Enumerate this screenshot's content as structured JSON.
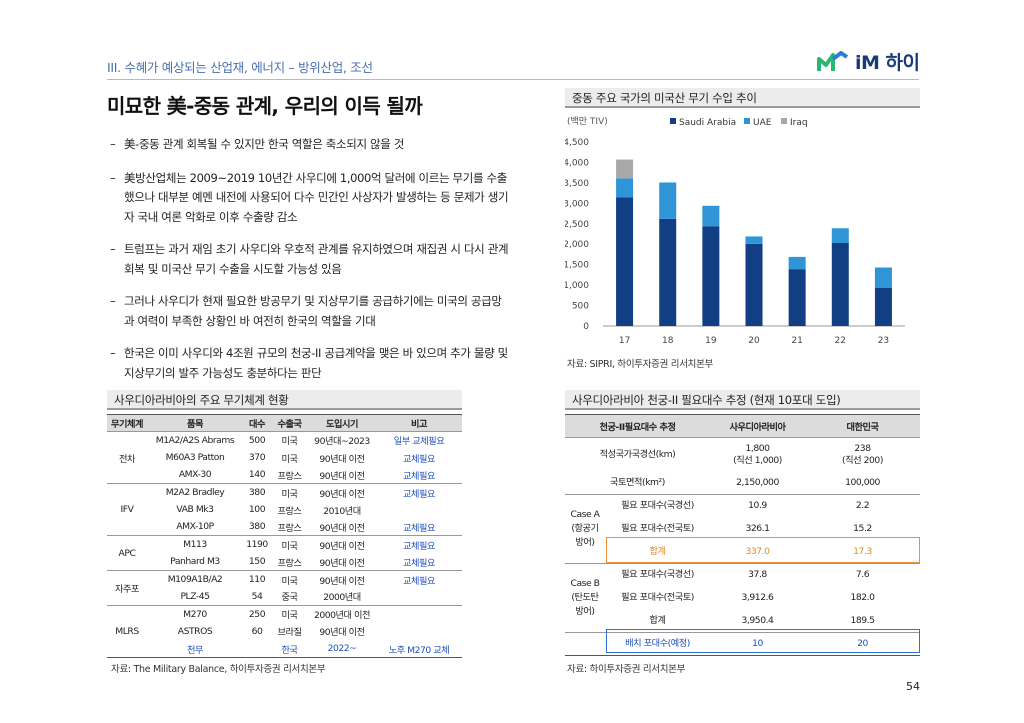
{
  "header": {
    "section": "III. 수혜가 예상되는 산업재, 에너지 – 방위산업, 조선",
    "logo": "iM 하이",
    "title": "미묘한 美-중동 관계, 우리의 이득 될까"
  },
  "bullets": [
    "美-중동 관계 회복될 수 있지만 한국 역할은 축소되지 않을 것",
    "美방산업체는 2009~2019 10년간 사우디에 1,000억 달러에 이르는 무기를 수출했으나 대부분 예멘 내전에 사용되어 다수 민간인 사상자가 발생하는 등 문제가 생기자 국내 여론 악화로 이후 수출량 감소",
    "트럼프는 과거 재임 초기 사우디와 우호적 관계를 유지하였으며 재집권 시 다시 관계 회복 및 미국산 무기 수출을 시도할 가능성 있음",
    "그러나 사우디가 현재 필요한 방공무기 및 지상무기를 공급하기에는 미국의 공급망과 여력이 부족한 상황인 바 여전히 한국의 역할을 기대",
    "한국은 이미 사우디와 4조원 규모의 천궁-II 공급계약을 맺은 바 있으며 추가 물량 및 지상무기의 발주 가능성도 충분하다는 판단"
  ],
  "chart_section": {
    "title": "중동 주요 국가의 미국산 무기 수입 추이",
    "source": "자료: SIPRI, 하이투자증권 리서치본부"
  },
  "chart_data": {
    "type": "bar",
    "stacked": true,
    "unit_label": "(백만 TIV)",
    "categories": [
      "17",
      "18",
      "19",
      "20",
      "21",
      "22",
      "23"
    ],
    "series": [
      {
        "name": "Saudi Arabia",
        "color": "#123f84",
        "values": [
          3150,
          2620,
          2440,
          2010,
          1390,
          2030,
          930
        ]
      },
      {
        "name": "UAE",
        "color": "#2f95d6",
        "values": [
          460,
          890,
          500,
          180,
          300,
          360,
          500
        ]
      },
      {
        "name": "Iraq",
        "color": "#a8a8a8",
        "values": [
          460,
          0,
          0,
          0,
          0,
          0,
          0
        ]
      }
    ],
    "ylim": [
      0,
      4500
    ],
    "yticks": [
      "0",
      "500",
      "1,000",
      "1,500",
      "2,000",
      "2,500",
      "3,000",
      "3,500",
      "4,000",
      "4,500"
    ],
    "legend": "top"
  },
  "arms_section": {
    "title": "사우디아라비아의 주요 무기체계 현황",
    "headers": [
      "무기체계",
      "품목",
      "대수",
      "수출국",
      "도입시기",
      "비고"
    ],
    "rows": [
      {
        "cat": "전차",
        "item": "M1A2/A2S Abrams",
        "qty": "500",
        "country": "미국",
        "period": "90년대~2023",
        "note": "일부 교체필요"
      },
      {
        "cat": "",
        "item": "M60A3 Patton",
        "qty": "370",
        "country": "미국",
        "period": "90년대 이전",
        "note": "교체필요"
      },
      {
        "cat": "",
        "item": "AMX-30",
        "qty": "140",
        "country": "프랑스",
        "period": "90년대 이전",
        "note": "교체필요"
      },
      {
        "cat": "IFV",
        "item": "M2A2 Bradley",
        "qty": "380",
        "country": "미국",
        "period": "90년대 이전",
        "note": "교체필요"
      },
      {
        "cat": "",
        "item": "VAB Mk3",
        "qty": "100",
        "country": "프랑스",
        "period": "2010년대",
        "note": ""
      },
      {
        "cat": "",
        "item": "AMX-10P",
        "qty": "380",
        "country": "프랑스",
        "period": "90년대 이전",
        "note": "교체필요"
      },
      {
        "cat": "APC",
        "item": "M113",
        "qty": "1190",
        "country": "미국",
        "period": "90년대 이전",
        "note": "교체필요"
      },
      {
        "cat": "",
        "item": "Panhard M3",
        "qty": "150",
        "country": "프랑스",
        "period": "90년대 이전",
        "note": "교체필요"
      },
      {
        "cat": "자주포",
        "item": "M109A1B/A2",
        "qty": "110",
        "country": "미국",
        "period": "90년대 이전",
        "note": "교체필요"
      },
      {
        "cat": "",
        "item": "PLZ-45",
        "qty": "54",
        "country": "중국",
        "period": "2000년대",
        "note": ""
      },
      {
        "cat": "MLRS",
        "item": "M270",
        "qty": "250",
        "country": "미국",
        "period": "2000년대 이전",
        "note": ""
      },
      {
        "cat": "",
        "item": "ASTROS",
        "qty": "60",
        "country": "브라질",
        "period": "90년대 이전",
        "note": ""
      },
      {
        "cat": "",
        "item": "천무",
        "qty": "",
        "country": "한국",
        "period": "2022~",
        "note": "노후 M270 교체"
      }
    ],
    "source": "자료: The Military Balance, 하이투자증권 리서치본부"
  },
  "estimate_section": {
    "title": "사우디아라비아 천궁-II 필요대수 추정 (현재 10포대 도입)",
    "headers": [
      "천궁-II필요대수 추정",
      "사우디아라비아",
      "대한민국"
    ],
    "coast_label": "적성국가국경선(km)",
    "coast_saudi_1": "1,800",
    "coast_saudi_2": "(직선 1,000)",
    "coast_korea_1": "238",
    "coast_korea_2": "(직선 200)",
    "area_label": "국토면적(km²)",
    "area_saudi": "2,150,000",
    "area_korea": "100,000",
    "case_a_1": "Case A",
    "case_a_2": "(항공기",
    "case_a_3": "방어)",
    "a_border_label": "필요 포대수(국경선)",
    "a_border_saudi": "10.9",
    "a_border_korea": "2.2",
    "a_land_label": "필요 포대수(전국토)",
    "a_land_saudi": "326.1",
    "a_land_korea": "15.2",
    "a_total_label": "합계",
    "a_total_saudi": "337.0",
    "a_total_korea": "17.3",
    "case_b_1": "Case B",
    "case_b_2": "(탄도탄",
    "case_b_3": "방어)",
    "b_border_label": "필요 포대수(국경선)",
    "b_border_saudi": "37.8",
    "b_border_korea": "7.6",
    "b_land_label": "필요 포대수(전국토)",
    "b_land_saudi": "3,912.6",
    "b_land_korea": "182.0",
    "b_total_label": "합계",
    "b_total_saudi": "3,950.4",
    "b_total_korea": "189.5",
    "deploy_label": "배치 포대수(예정)",
    "deploy_saudi": "10",
    "deploy_korea": "20",
    "source": "자료: 하이투자증권 리서치본부"
  },
  "page_number": "54",
  "colors": {
    "accent": "#183b78",
    "highlight_orange": "#e08a2a",
    "highlight_blue": "#1f4fbf"
  }
}
